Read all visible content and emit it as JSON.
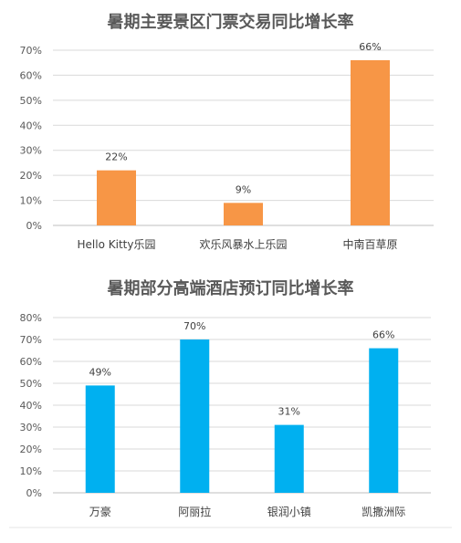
{
  "chart_data": [
    {
      "type": "bar",
      "title": "暑期主要景区门票交易同比增长率",
      "categories": [
        "Hello Kitty乐园",
        "欢乐风暴水上乐园",
        "中南百草原"
      ],
      "values": [
        22,
        9,
        66
      ],
      "data_labels": [
        "22%",
        "9%",
        "66%"
      ],
      "ylim": [
        0,
        70
      ],
      "yticks": [
        "0%",
        "10%",
        "20%",
        "30%",
        "40%",
        "50%",
        "60%",
        "70%"
      ],
      "color": "#F79646",
      "grid": true,
      "legend": "none"
    },
    {
      "type": "bar",
      "title": "暑期部分高端酒店预订同比增长率",
      "categories": [
        "万豪",
        "阿丽拉",
        "银润小镇",
        "凯撒洲际"
      ],
      "values": [
        49,
        70,
        31,
        66
      ],
      "data_labels": [
        "49%",
        "70%",
        "31%",
        "66%"
      ],
      "ylim": [
        0,
        80
      ],
      "yticks": [
        "0%",
        "10%",
        "20%",
        "30%",
        "40%",
        "50%",
        "60%",
        "70%",
        "80%"
      ],
      "color": "#00B0F0",
      "grid": true,
      "legend": "none"
    }
  ]
}
